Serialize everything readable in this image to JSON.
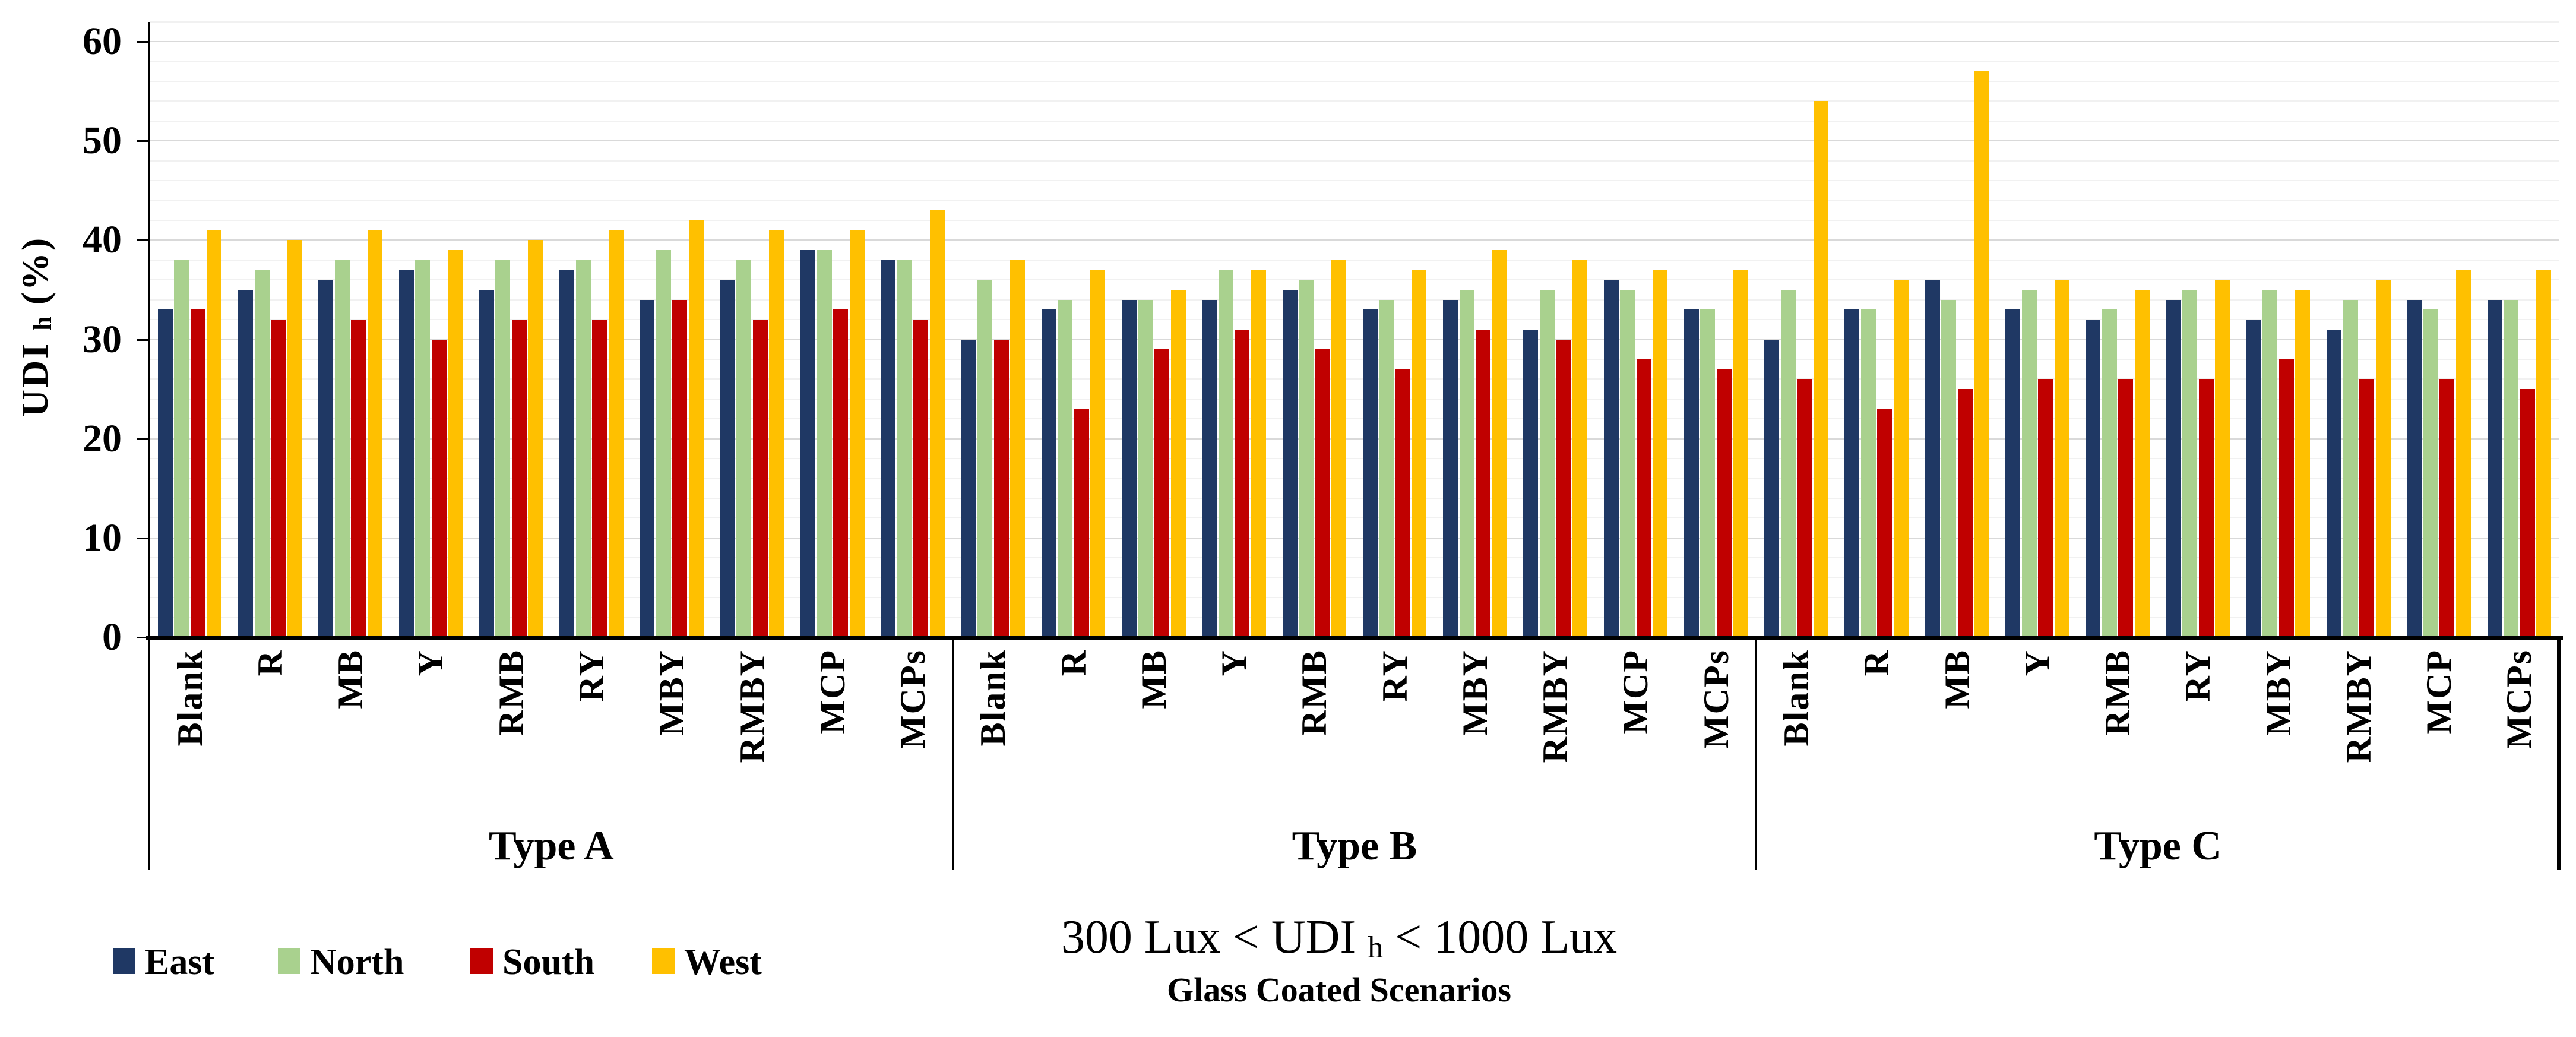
{
  "chart_data": {
    "type": "bar",
    "title_parts": {
      "pre": "300 Lux < UDI ",
      "sub": "h",
      "post": " < 1000 Lux"
    },
    "xlabel": "Glass Coated Scenarios",
    "ylabel_parts": {
      "pre": "UDI ",
      "sub": "h",
      "post": " (%)"
    },
    "ylim": [
      0,
      60
    ],
    "y_ticks": [
      0,
      10,
      20,
      30,
      40,
      50,
      60
    ],
    "minor_grid_step": 2,
    "grid": "on",
    "legend_position": "bottom-left",
    "group_labels": [
      "Type A",
      "Type B",
      "Type C"
    ],
    "categories": [
      "Blank",
      "R",
      "MB",
      "Y",
      "RMB",
      "RY",
      "MBY",
      "RMBY",
      "MCP",
      "MCPs"
    ],
    "series": [
      {
        "name": "East",
        "color": "#1F3864",
        "values": [
          33,
          35,
          36,
          37,
          35,
          37,
          34,
          36,
          39,
          38,
          30,
          33,
          34,
          34,
          35,
          33,
          34,
          31,
          36,
          33,
          30,
          33,
          36,
          33,
          32,
          34,
          32,
          31,
          34,
          34
        ]
      },
      {
        "name": "North",
        "color": "#A9D18E",
        "values": [
          38,
          37,
          38,
          38,
          38,
          38,
          39,
          38,
          39,
          38,
          36,
          34,
          34,
          37,
          36,
          34,
          35,
          35,
          35,
          33,
          35,
          33,
          34,
          35,
          33,
          35,
          35,
          34,
          33,
          34
        ]
      },
      {
        "name": "South",
        "color": "#C00000",
        "values": [
          33,
          32,
          32,
          30,
          32,
          32,
          34,
          32,
          33,
          32,
          30,
          23,
          29,
          31,
          29,
          27,
          31,
          30,
          28,
          27,
          26,
          23,
          25,
          26,
          26,
          26,
          28,
          26,
          26,
          25
        ]
      },
      {
        "name": "West",
        "color": "#FFC000",
        "values": [
          41,
          40,
          41,
          39,
          40,
          41,
          42,
          41,
          41,
          43,
          38,
          37,
          35,
          37,
          38,
          37,
          39,
          38,
          37,
          37,
          54,
          36,
          57,
          36,
          35,
          36,
          35,
          36,
          37,
          37
        ]
      }
    ]
  },
  "legend": {
    "entries": [
      {
        "label": "East",
        "color": "#1F3864"
      },
      {
        "label": "North",
        "color": "#A9D18E"
      },
      {
        "label": "South",
        "color": "#C00000"
      },
      {
        "label": "West",
        "color": "#FFC000"
      }
    ]
  },
  "colors": {
    "grid_major": "#d9d9d9",
    "grid_minor": "#f1f1f1",
    "axis": "#000000"
  }
}
